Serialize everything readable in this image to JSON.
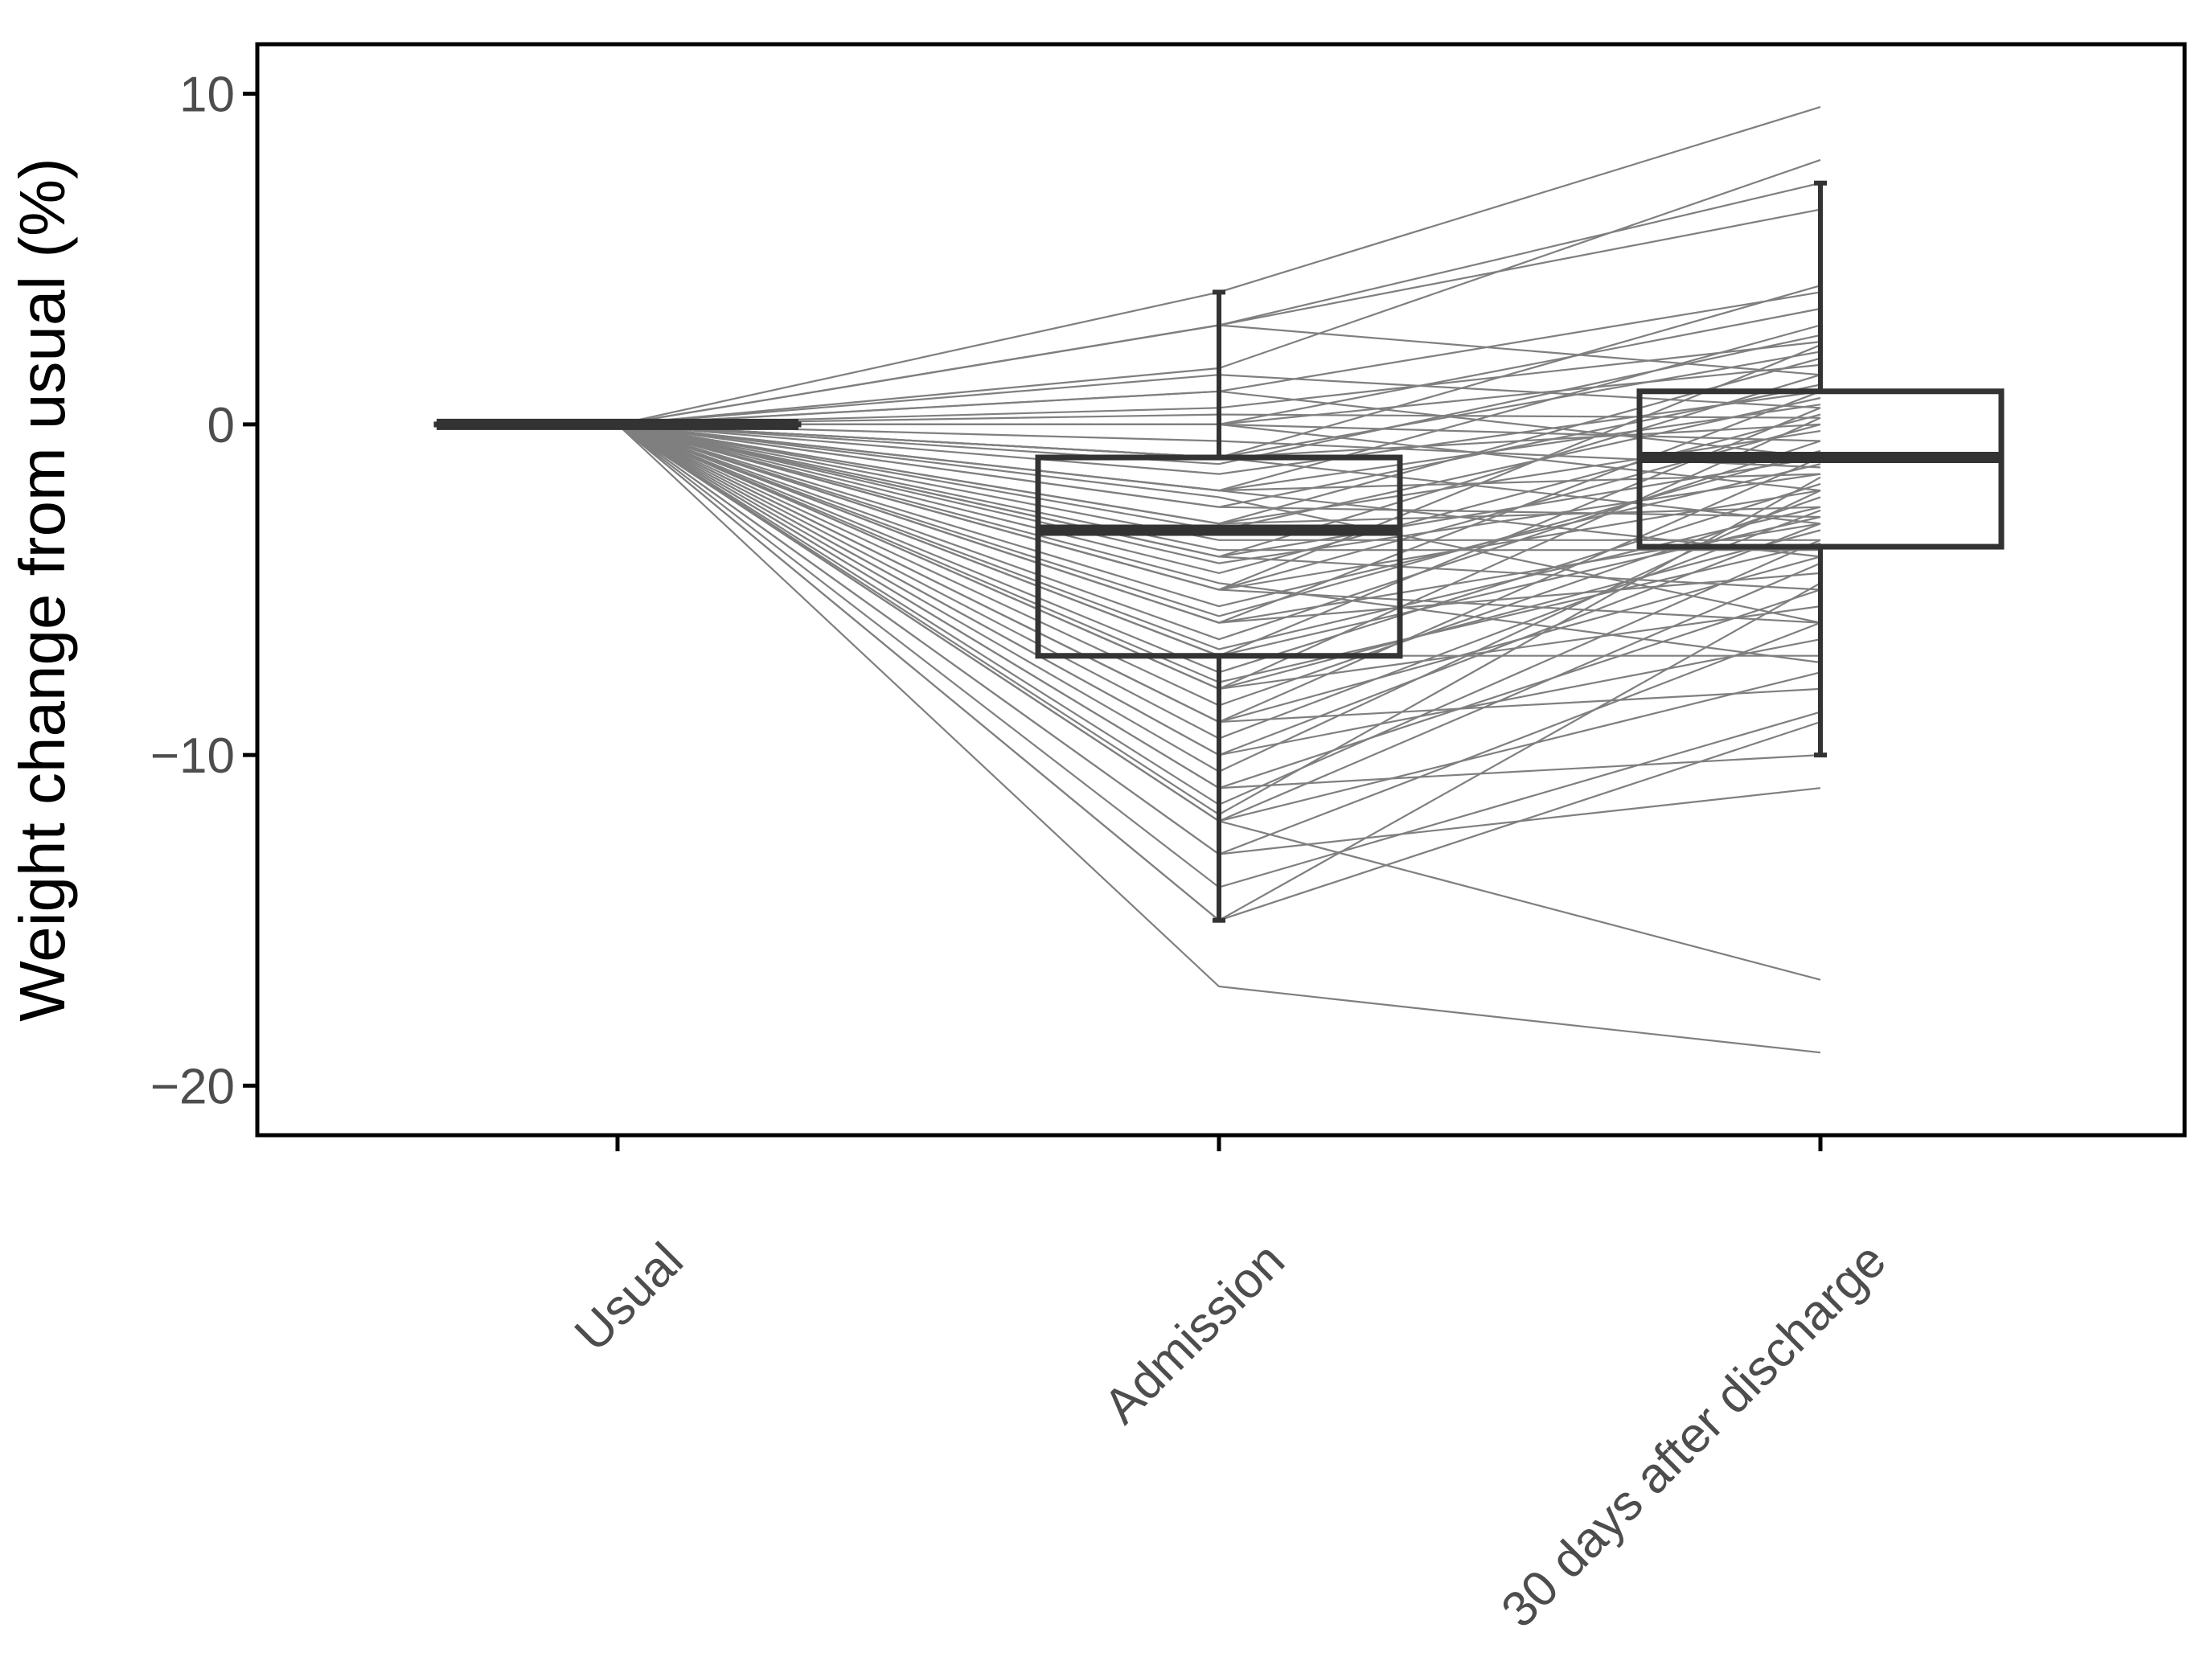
{
  "chart_data": {
    "type": "line",
    "subtype": "spaghetti plot with boxplots",
    "title": "",
    "xlabel": "",
    "ylabel": "Weight change from usual (%)",
    "ylim": [
      -21.5,
      11.5
    ],
    "y_ticks": [
      10,
      0,
      -10,
      -20
    ],
    "categories": [
      "Usual",
      "Admission",
      "30 days after discharge"
    ],
    "x_tick_rotation_deg": -45,
    "grid": false,
    "legend": "none",
    "colors": {
      "lines": "#7f7f7f",
      "box": "#333333",
      "axis": "#000000",
      "tick_label": "#4d4d4d"
    },
    "boxplots": [
      {
        "category": "Usual",
        "min": 0,
        "q1": 0,
        "median": 0,
        "q3": 0,
        "max": 0
      },
      {
        "category": "Admission",
        "min": -15,
        "q1": -7,
        "median": -3.2,
        "q3": -1,
        "max": 4
      },
      {
        "category": "30 days after discharge",
        "min": -10,
        "q1": -3.7,
        "median": -1,
        "q3": 1,
        "max": 7.3
      }
    ],
    "series": [
      {
        "values": [
          0,
          4,
          9.6
        ]
      },
      {
        "values": [
          0,
          3,
          7.3
        ]
      },
      {
        "values": [
          0,
          3,
          6.5
        ]
      },
      {
        "values": [
          0,
          3,
          1.5
        ]
      },
      {
        "values": [
          0,
          1.7,
          8
        ]
      },
      {
        "values": [
          0,
          1.5,
          0.5
        ]
      },
      {
        "values": [
          0,
          1,
          4
        ]
      },
      {
        "values": [
          0,
          1,
          -1
        ]
      },
      {
        "values": [
          0,
          0.5,
          2.5
        ]
      },
      {
        "values": [
          0,
          0.3,
          0.2
        ]
      },
      {
        "values": [
          0,
          0,
          3.5
        ]
      },
      {
        "values": [
          0,
          0,
          1.8
        ]
      },
      {
        "values": [
          0,
          0,
          -0.5
        ]
      },
      {
        "values": [
          0,
          0,
          -2
        ]
      },
      {
        "values": [
          0,
          -1,
          4.2
        ]
      },
      {
        "values": [
          0,
          -1,
          2.2
        ]
      },
      {
        "values": [
          0,
          -1,
          0
        ]
      },
      {
        "values": [
          0,
          -1,
          -3
        ]
      },
      {
        "values": [
          0,
          -1.5,
          1
        ]
      },
      {
        "values": [
          0,
          -2,
          3
        ]
      },
      {
        "values": [
          0,
          -2,
          0.6
        ]
      },
      {
        "values": [
          0,
          -2,
          -1.5
        ]
      },
      {
        "values": [
          0,
          -2,
          -4
        ]
      },
      {
        "values": [
          0,
          -2.5,
          1.2
        ]
      },
      {
        "values": [
          0,
          -3,
          2
        ]
      },
      {
        "values": [
          0,
          -3,
          -0.2
        ]
      },
      {
        "values": [
          0,
          -3,
          -2.5
        ]
      },
      {
        "values": [
          0,
          -3.2,
          0.8
        ]
      },
      {
        "values": [
          0,
          -3.5,
          -3.5
        ]
      },
      {
        "values": [
          0,
          -4,
          1.5
        ]
      },
      {
        "values": [
          0,
          -4,
          -1
        ]
      },
      {
        "values": [
          0,
          -4,
          -5
        ]
      },
      {
        "values": [
          0,
          -4.5,
          0.3
        ]
      },
      {
        "values": [
          0,
          -5,
          2.4
        ]
      },
      {
        "values": [
          0,
          -5,
          0
        ]
      },
      {
        "values": [
          0,
          -5,
          -2
        ]
      },
      {
        "values": [
          0,
          -5,
          -6
        ]
      },
      {
        "values": [
          0,
          -5.5,
          -1.2
        ]
      },
      {
        "values": [
          0,
          -6,
          1
        ]
      },
      {
        "values": [
          0,
          -6,
          -3
        ]
      },
      {
        "values": [
          0,
          -6,
          -4.5
        ]
      },
      {
        "values": [
          0,
          -6.5,
          -0.5
        ]
      },
      {
        "values": [
          0,
          -7,
          0.5
        ]
      },
      {
        "values": [
          0,
          -7,
          -2.8
        ]
      },
      {
        "values": [
          0,
          -7,
          -7
        ]
      },
      {
        "values": [
          0,
          -7.5,
          -1.8
        ]
      },
      {
        "values": [
          0,
          -8,
          0.2
        ]
      },
      {
        "values": [
          0,
          -8,
          -3.2
        ]
      },
      {
        "values": [
          0,
          -8,
          -5.5
        ]
      },
      {
        "values": [
          0,
          -8.5,
          -2.2
        ]
      },
      {
        "values": [
          0,
          -9,
          -1
        ]
      },
      {
        "values": [
          0,
          -9,
          -4
        ]
      },
      {
        "values": [
          0,
          -9,
          -8
        ]
      },
      {
        "values": [
          0,
          -10,
          -3
        ]
      },
      {
        "values": [
          0,
          -10,
          -6.5
        ]
      },
      {
        "values": [
          0,
          -10.5,
          -2
        ]
      },
      {
        "values": [
          0,
          -11,
          -5
        ]
      },
      {
        "values": [
          0,
          -11,
          -10
        ]
      },
      {
        "values": [
          0,
          -11.5,
          -3.5
        ]
      },
      {
        "values": [
          0,
          -12,
          -4.2
        ]
      },
      {
        "values": [
          0,
          -12,
          -7.5
        ]
      },
      {
        "values": [
          0,
          -12,
          -16.8
        ]
      },
      {
        "values": [
          0,
          -13,
          -6
        ]
      },
      {
        "values": [
          0,
          -13,
          -11
        ]
      },
      {
        "values": [
          0,
          -14,
          -8.7
        ]
      },
      {
        "values": [
          0,
          -15,
          -4.8
        ]
      },
      {
        "values": [
          0,
          -15,
          -9
        ]
      },
      {
        "values": [
          0,
          -17,
          -19
        ]
      },
      {
        "values": [
          0,
          -2.5,
          -2.8
        ]
      },
      {
        "values": [
          0,
          -4.2,
          -1.5
        ]
      },
      {
        "values": [
          0,
          -6.8,
          -2.5
        ]
      },
      {
        "values": [
          0,
          -1.2,
          2.7
        ]
      },
      {
        "values": [
          0,
          -3.8,
          -3.8
        ]
      },
      {
        "values": [
          0,
          -5.8,
          -0.8
        ]
      },
      {
        "values": [
          0,
          -0.5,
          -1.3
        ]
      },
      {
        "values": [
          0,
          -2.2,
          -6
        ]
      },
      {
        "values": [
          0,
          -7.8,
          -3.6
        ]
      },
      {
        "values": [
          0,
          -9.5,
          -2.6
        ]
      },
      {
        "values": [
          0,
          -11.8,
          -1.6
        ]
      },
      {
        "values": [
          0,
          -4.8,
          -7.2
        ]
      }
    ]
  }
}
